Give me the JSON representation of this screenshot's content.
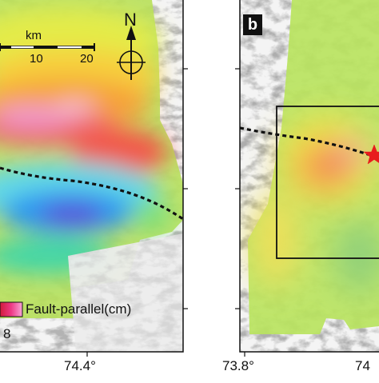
{
  "panels": {
    "a": {
      "scale_bar": {
        "unit": "km",
        "ticks": [
          "10",
          "20"
        ]
      },
      "north_arrow": "N",
      "legend": {
        "title": "Fault-parallel(cm)",
        "value": "8"
      },
      "x_tick_label": "74.4°"
    },
    "b": {
      "letter": "b",
      "x_tick_labels": [
        "73.8°",
        "74"
      ]
    }
  },
  "colors": {
    "fault_line": "#111111",
    "epicenter_star": "#e81c1c",
    "frame": "#111111"
  },
  "icons": [
    "north-arrow-icon",
    "compass-crosshair-icon",
    "epicenter-star-icon"
  ]
}
